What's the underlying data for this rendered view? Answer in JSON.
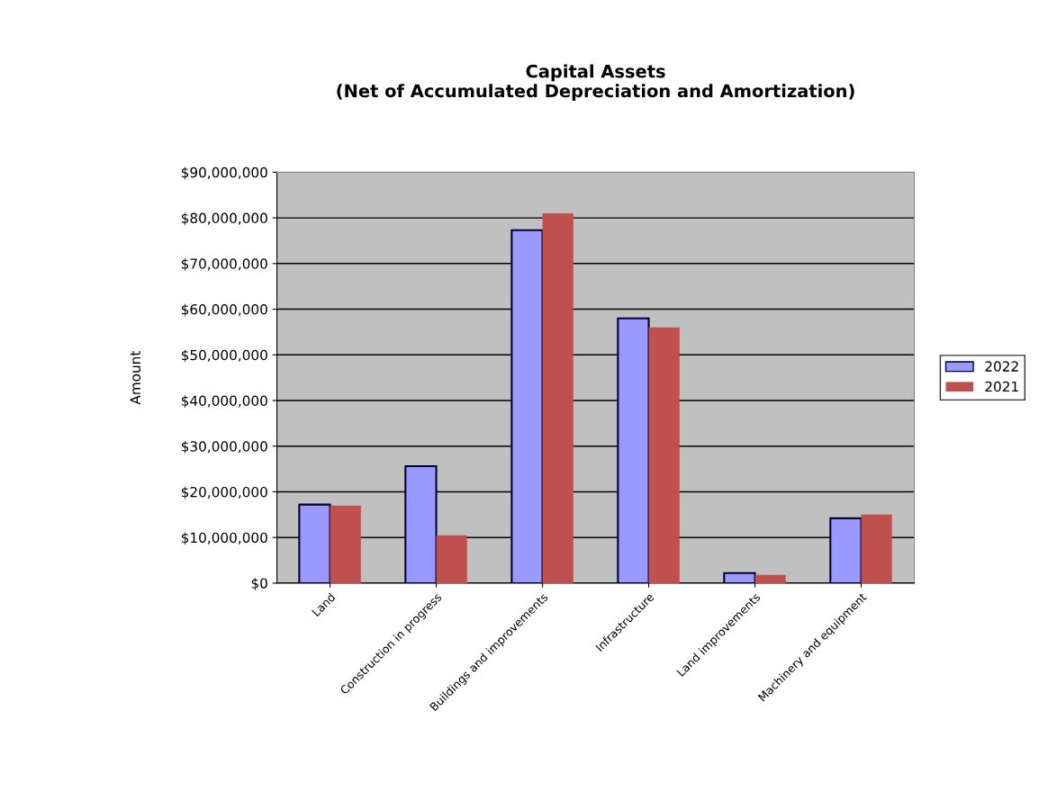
{
  "chart_data": {
    "type": "bar",
    "title": "Capital Assets\n(Net of Accumulated Depreciation and Amortization)",
    "ylabel": "Amount",
    "categories": [
      "Land",
      "Construction in progress",
      "Buildings and improvements",
      "Infrastructure",
      "Land improvements",
      "Machinery and equipment"
    ],
    "series": [
      {
        "name": "2022",
        "color": "#9999ff",
        "values": [
          17200000,
          25600000,
          77300000,
          58000000,
          2200000,
          14200000
        ]
      },
      {
        "name": "2021",
        "color": "#c0504d",
        "values": [
          17000000,
          10500000,
          81000000,
          56000000,
          1800000,
          15000000
        ]
      }
    ],
    "ylim": [
      0,
      90000000
    ],
    "yticks": [
      {
        "value": 0,
        "label": "$0"
      },
      {
        "value": 10000000,
        "label": "$10,000,000"
      },
      {
        "value": 20000000,
        "label": "$20,000,000"
      },
      {
        "value": 30000000,
        "label": "$30,000,000"
      },
      {
        "value": 40000000,
        "label": "$40,000,000"
      },
      {
        "value": 50000000,
        "label": "$50,000,000"
      },
      {
        "value": 60000000,
        "label": "$60,000,000"
      },
      {
        "value": 70000000,
        "label": "$70,000,000"
      },
      {
        "value": 80000000,
        "label": "$80,000,000"
      },
      {
        "value": 90000000,
        "label": "$90,000,000"
      }
    ],
    "grid": "y",
    "legend": "right"
  }
}
